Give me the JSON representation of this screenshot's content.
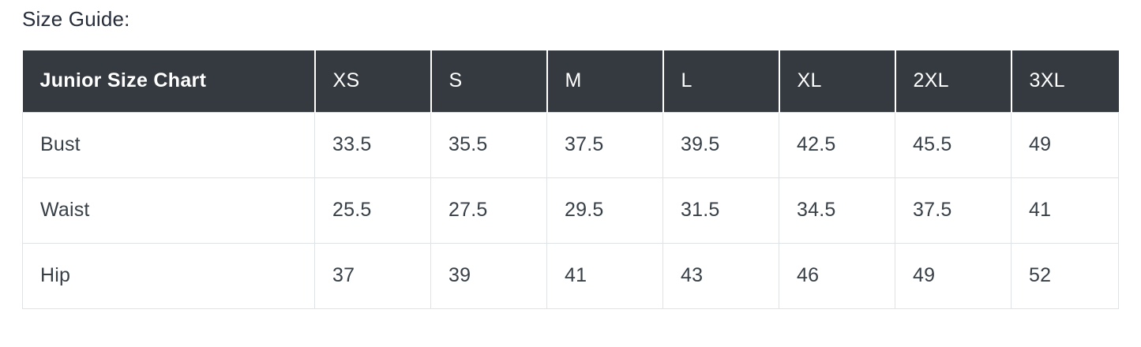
{
  "page": {
    "title": "Size Guide:"
  },
  "size_table": {
    "header": [
      "Junior Size Chart",
      "XS",
      "S",
      "M",
      "L",
      "XL",
      "2XL",
      "3XL"
    ],
    "rows": [
      {
        "label": "Bust",
        "values": [
          "33.5",
          "35.5",
          "37.5",
          "39.5",
          "42.5",
          "45.5",
          "49"
        ]
      },
      {
        "label": "Waist",
        "values": [
          "25.5",
          "27.5",
          "29.5",
          "31.5",
          "34.5",
          "37.5",
          "41"
        ]
      },
      {
        "label": "Hip",
        "values": [
          "37",
          "39",
          "41",
          "43",
          "46",
          "49",
          "52"
        ]
      }
    ]
  },
  "colors": {
    "header_background": "#343a40",
    "header_text": "#ffffff",
    "body_text": "#373f47",
    "body_border": "#dfe3e6",
    "title_text": "#252c3a"
  },
  "chart_data": {
    "type": "table",
    "title": "Junior Size Chart",
    "columns": [
      "XS",
      "S",
      "M",
      "L",
      "XL",
      "2XL",
      "3XL"
    ],
    "series": [
      {
        "name": "Bust",
        "values": [
          33.5,
          35.5,
          37.5,
          39.5,
          42.5,
          45.5,
          49
        ]
      },
      {
        "name": "Waist",
        "values": [
          25.5,
          27.5,
          29.5,
          31.5,
          34.5,
          37.5,
          41
        ]
      },
      {
        "name": "Hip",
        "values": [
          37,
          39,
          41,
          43,
          46,
          49,
          52
        ]
      }
    ]
  }
}
